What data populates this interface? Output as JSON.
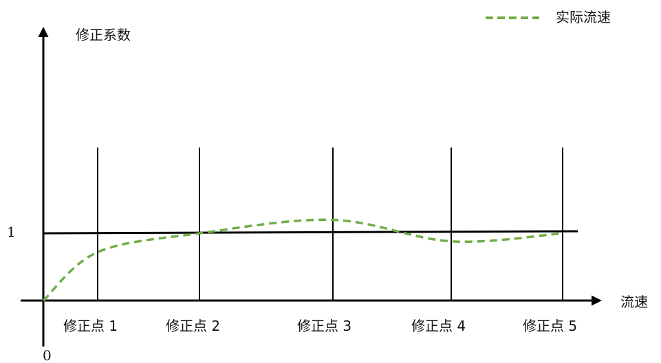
{
  "chart_data": {
    "type": "line",
    "ylabel": "修正系数",
    "xlabel": "流速",
    "origin_label": "0",
    "y_reference": {
      "value": 1,
      "label": "1"
    },
    "correction_points": [
      "修正点 1",
      "修正点 2",
      "修正点 3",
      "修正点 4",
      "修正点 5"
    ],
    "series": [
      {
        "name": "实际流速",
        "color": "#70ad47",
        "style": "dashed",
        "values": [
          0,
          0.72,
          1.0,
          1.2,
          0.88,
          1.0
        ]
      }
    ],
    "legend_position": "top-right"
  }
}
